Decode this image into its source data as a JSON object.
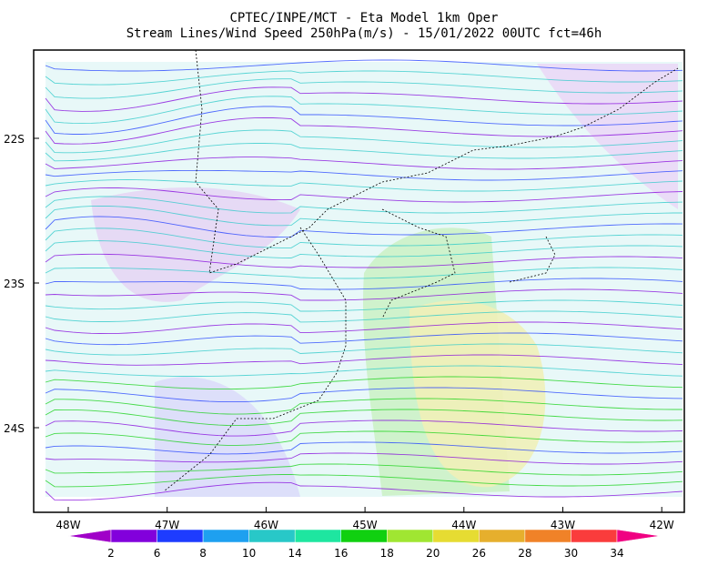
{
  "header": {
    "title": "CPTEC/INPE/MCT -  Eta Model 1km Oper",
    "subtitle": "Stream Lines/Wind Speed 250hPa(m/s) - 15/01/2022 00UTC fct=46h"
  },
  "map": {
    "lon_labels": [
      "48W",
      "47W",
      "46W",
      "45W",
      "44W",
      "43W",
      "42W"
    ],
    "lat_labels": [
      "22S",
      "23S",
      "24S"
    ]
  },
  "colorbar": {
    "levels": [
      2,
      6,
      8,
      10,
      14,
      16,
      18,
      20,
      26,
      28,
      30,
      34
    ],
    "colors": [
      "#a000c8",
      "#8200dc",
      "#1e3cff",
      "#1ea0f0",
      "#28c8c8",
      "#1ee6a0",
      "#10d010",
      "#a0e632",
      "#e6dc32",
      "#e6af2d",
      "#f08228",
      "#fa3c3c",
      "#f00082"
    ]
  }
}
